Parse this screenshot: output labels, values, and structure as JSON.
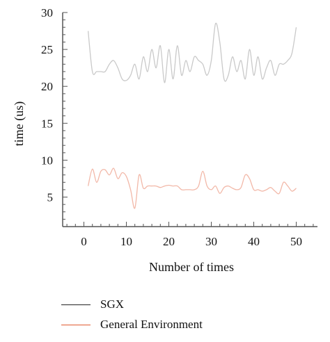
{
  "chart_data": {
    "type": "line",
    "title": "",
    "xlabel": "Number of times",
    "ylabel": "time (us)",
    "xlim": [
      -5,
      55
    ],
    "ylim": [
      1,
      30
    ],
    "xticks": [
      0,
      10,
      20,
      30,
      40,
      50
    ],
    "yticks": [
      5,
      10,
      15,
      20,
      25,
      30
    ],
    "grid": false,
    "legend_position": "bottom-left",
    "x": [
      1,
      2,
      3,
      4,
      5,
      6,
      7,
      8,
      9,
      10,
      11,
      12,
      13,
      14,
      15,
      16,
      17,
      18,
      19,
      20,
      21,
      22,
      23,
      24,
      25,
      26,
      27,
      28,
      29,
      30,
      31,
      32,
      33,
      34,
      35,
      36,
      37,
      38,
      39,
      40,
      41,
      42,
      43,
      44,
      45,
      46,
      47,
      48,
      49,
      50
    ],
    "series": [
      {
        "name": "SGX",
        "color": "#c9c9c9",
        "legend_color": "#222222",
        "values": [
          27.5,
          22.0,
          22.0,
          22.0,
          22.0,
          23.0,
          23.5,
          22.5,
          21.0,
          20.8,
          21.5,
          23.0,
          21.0,
          24.0,
          22.0,
          25.0,
          22.5,
          25.5,
          20.5,
          25.0,
          21.0,
          25.5,
          21.5,
          23.5,
          22.0,
          24.0,
          23.5,
          23.0,
          21.5,
          23.5,
          28.5,
          26.0,
          21.0,
          21.5,
          24.0,
          22.0,
          23.5,
          21.0,
          25.0,
          21.5,
          24.0,
          21.0,
          22.5,
          23.5,
          21.5,
          23.0,
          23.0,
          23.5,
          24.5,
          28.0
        ]
      },
      {
        "name": "General Environment",
        "color": "#f2b8a8",
        "legend_color": "#e05a30",
        "values": [
          6.5,
          8.8,
          7.0,
          8.5,
          8.7,
          8.0,
          8.9,
          7.5,
          8.3,
          7.8,
          6.0,
          3.5,
          8.0,
          6.2,
          6.5,
          6.5,
          6.5,
          6.3,
          6.5,
          6.6,
          6.5,
          6.5,
          6.0,
          6.0,
          6.0,
          6.0,
          6.5,
          8.5,
          6.5,
          6.0,
          6.5,
          5.5,
          6.3,
          6.5,
          6.2,
          6.0,
          6.3,
          8.0,
          7.5,
          6.0,
          6.0,
          5.8,
          6.0,
          6.3,
          5.8,
          5.5,
          7.0,
          6.5,
          5.8,
          6.2
        ]
      }
    ]
  }
}
